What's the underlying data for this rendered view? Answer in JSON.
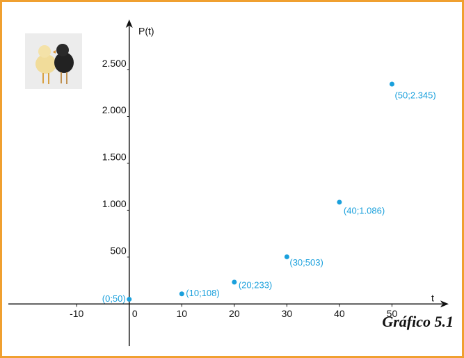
{
  "chart_data": {
    "type": "scatter",
    "x_label": "t",
    "y_label": "P(t)",
    "caption": "Gráfico 5.1",
    "x": [
      0,
      10,
      20,
      30,
      40,
      50
    ],
    "values": [
      50,
      108,
      233,
      503,
      1086,
      2345
    ],
    "value_labels": [
      "(0;50)",
      "(10;108)",
      "(20;233)",
      "(30;503)",
      "(40;1.086)",
      "(50;2.345)"
    ],
    "color": "#1aa0dc",
    "xlim": [
      -23,
      60
    ],
    "ylim": [
      -450,
      2990
    ],
    "xticks": [
      -10,
      0,
      10,
      20,
      30,
      40,
      50
    ],
    "yticks": [
      500,
      {
        "value": 1000,
        "label": "1.000"
      },
      {
        "value": 1500,
        "label": "1.500"
      },
      {
        "value": 2000,
        "label": "2.000"
      },
      {
        "value": 2500,
        "label": "2.500"
      }
    ]
  }
}
